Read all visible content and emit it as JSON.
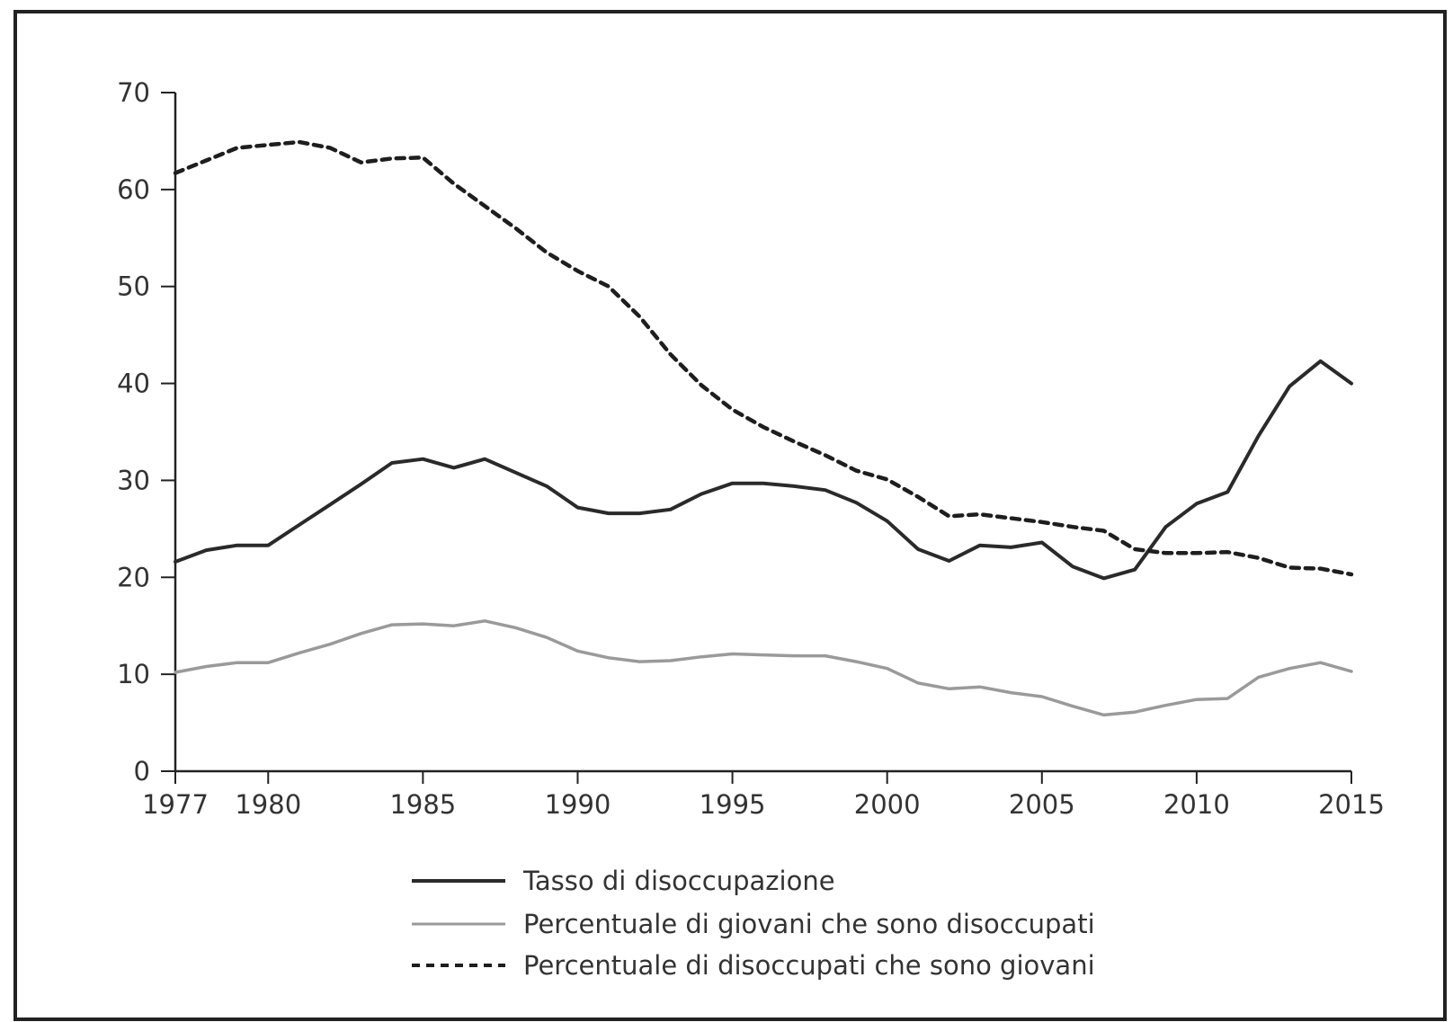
{
  "chart_data": {
    "type": "line",
    "title": "",
    "xlabel": "",
    "ylabel": "",
    "xlim": [
      1977,
      2015
    ],
    "ylim": [
      0,
      70
    ],
    "x_ticks": [
      "1977",
      "1980",
      "1985",
      "1990",
      "1995",
      "2000",
      "2005",
      "2010",
      "2015"
    ],
    "y_ticks": [
      "0",
      "10",
      "20",
      "30",
      "40",
      "50",
      "60",
      "70"
    ],
    "grid": false,
    "legend_position": "bottom-center",
    "x": [
      1977,
      1978,
      1979,
      1980,
      1981,
      1982,
      1983,
      1984,
      1985,
      1986,
      1987,
      1988,
      1989,
      1990,
      1991,
      1992,
      1993,
      1994,
      1995,
      1996,
      1997,
      1998,
      1999,
      2000,
      2001,
      2002,
      2003,
      2004,
      2005,
      2006,
      2007,
      2008,
      2009,
      2010,
      2011,
      2012,
      2013,
      2014,
      2015
    ],
    "series": [
      {
        "name": "Tasso di disoccupazione",
        "color": "#2a2a2a",
        "style": "solid",
        "values": [
          21.6,
          22.8,
          23.3,
          23.3,
          25.4,
          27.5,
          29.6,
          31.8,
          32.2,
          31.3,
          32.2,
          30.8,
          29.4,
          27.2,
          26.6,
          26.6,
          27.0,
          28.6,
          29.7,
          29.7,
          29.4,
          29.0,
          27.7,
          25.8,
          22.9,
          21.7,
          23.3,
          23.1,
          23.6,
          21.1,
          19.9,
          20.8,
          25.2,
          27.6,
          28.8,
          34.6,
          39.7,
          42.3,
          40.0
        ]
      },
      {
        "name": "Percentuale di giovani che sono disoccupati",
        "color": "#9a9a9a",
        "style": "solid",
        "values": [
          10.2,
          10.8,
          11.2,
          11.2,
          12.2,
          13.1,
          14.2,
          15.1,
          15.2,
          15.0,
          15.5,
          14.8,
          13.8,
          12.4,
          11.7,
          11.3,
          11.4,
          11.8,
          12.1,
          12.0,
          11.9,
          11.9,
          11.3,
          10.6,
          9.1,
          8.5,
          8.7,
          8.1,
          7.7,
          6.7,
          5.8,
          6.1,
          6.8,
          7.4,
          7.5,
          9.7,
          10.6,
          11.2,
          10.3
        ]
      },
      {
        "name": "Percentuale di disoccupati che sono giovani",
        "color": "#1e1e1e",
        "style": "dashed",
        "values": [
          61.7,
          63.0,
          64.3,
          64.6,
          64.9,
          64.3,
          62.8,
          63.2,
          63.3,
          60.6,
          58.3,
          56.0,
          53.5,
          51.6,
          50.0,
          46.9,
          43.0,
          39.8,
          37.3,
          35.5,
          34.0,
          32.6,
          31.0,
          30.1,
          28.3,
          26.3,
          26.5,
          26.1,
          25.7,
          25.2,
          24.8,
          22.9,
          22.5,
          22.5,
          22.6,
          22.0,
          21.0,
          20.9,
          20.3
        ]
      }
    ]
  }
}
